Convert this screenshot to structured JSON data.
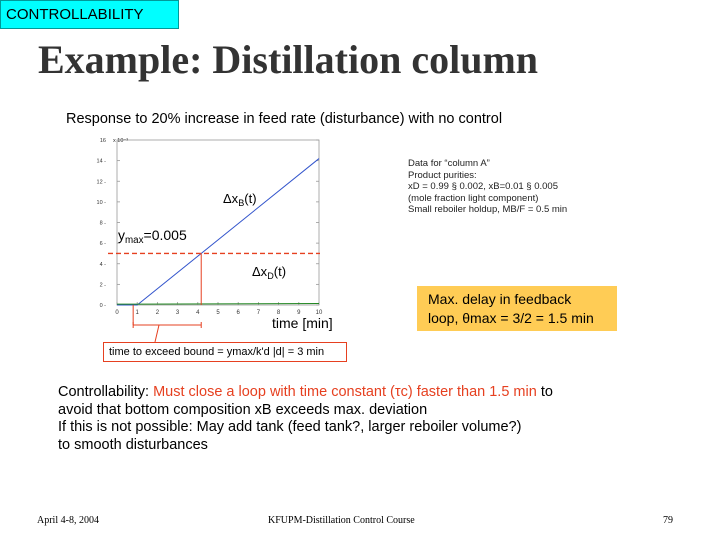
{
  "section_tag": "CONTROLLABILITY",
  "slide_title": "Example: Distillation column",
  "chart_title": "Response to 20% increase in feed rate (disturbance) with no control",
  "chart_data": {
    "type": "line",
    "xlabel": "time [min]",
    "x_ticks": [
      "0",
      "1",
      "2",
      "3",
      "4",
      "5",
      "6",
      "7",
      "8",
      "9",
      "10"
    ],
    "y_ticks": [
      "16",
      "14",
      "12",
      "10",
      "8",
      "6",
      "4",
      "2",
      "0"
    ],
    "y_exponent": "x 10⁻³",
    "xlim": [
      0,
      10
    ],
    "ylim": [
      0,
      16
    ],
    "series": [
      {
        "name": "Δx_B(t)",
        "color": "#3355cc",
        "points": [
          [
            0,
            0
          ],
          [
            1,
            0
          ],
          [
            10,
            14.2
          ]
        ]
      },
      {
        "name": "Δx_D(t)",
        "color": "#228822",
        "points": [
          [
            0,
            0.08
          ],
          [
            1,
            0.08
          ],
          [
            10,
            0.15
          ]
        ]
      }
    ],
    "bound": {
      "label_main": "y",
      "label_sub": "max",
      "label_rest": "=0.005",
      "value": 5,
      "color": "#e64020"
    },
    "annotations": {
      "xb_label_main": "Δx",
      "xb_label_sub": "B",
      "xb_label_rest": "(t)",
      "xd_label_main": "Δx",
      "xd_label_sub": "D",
      "xd_label_rest": "(t)"
    }
  },
  "info_lines": [
    "Data for “column A”",
    "Product purities:",
    "xD = 0.99 § 0.002, xB=0.01 § 0.005",
    "(mole fraction light component)",
    "Small reboiler holdup, MB/F = 0.5 min"
  ],
  "delay_box": {
    "line1": "Max. delay in feedback",
    "line2": "loop, θmax = 3/2 = 1.5 min"
  },
  "bound_box": "time to exceed bound = ymax/k'd |d| = 3 min",
  "controllability": {
    "line1_a": "Controllability: ",
    "line1_b": "Must close a loop with time constant (τc) faster than 1.5 min",
    "line1_c": " to",
    "line2": "avoid that bottom composition xB exceeds max. deviation",
    "line3": "If this is not possible: May add tank (feed tank?, larger reboiler volume?)",
    "line4": "to smooth disturbances"
  },
  "footer": {
    "date": "April 4-8, 2004",
    "course": "KFUPM-Distillation Control Course",
    "page": "79"
  }
}
